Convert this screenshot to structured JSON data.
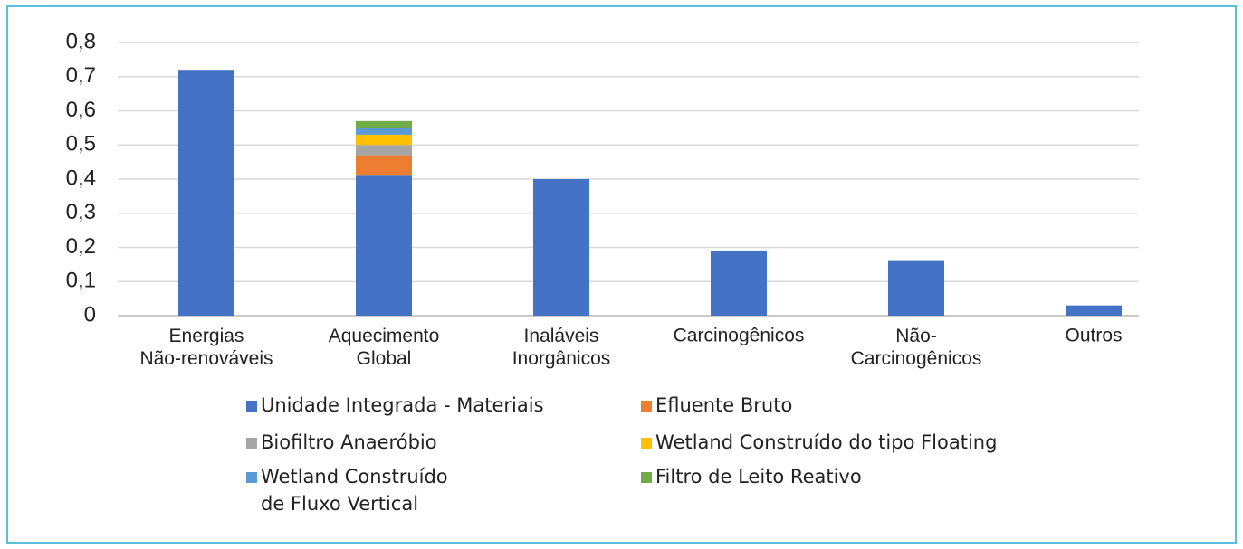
{
  "chart_data": {
    "type": "stacked_bar",
    "categories": [
      "Energias\nNão-renováveis",
      "Aquecimento\nGlobal",
      "Inaláveis\nInorgânicos",
      "Carcinogênicos",
      "Não-\nCarcinogênicos",
      "Outros"
    ],
    "series": [
      {
        "name": "Unidade Integrada - Materiais",
        "color": "#4472c4",
        "values": [
          0.72,
          0.41,
          0.4,
          0.19,
          0.16,
          0.03
        ]
      },
      {
        "name": "Efluente Bruto",
        "color": "#ed7d31",
        "values": [
          0,
          0.06,
          0,
          0,
          0,
          0
        ]
      },
      {
        "name": "Biofiltro Anaeróbio",
        "color": "#a5a5a5",
        "values": [
          0,
          0.03,
          0,
          0,
          0,
          0
        ]
      },
      {
        "name": "Wetland Construído do tipo Floating",
        "color": "#ffc000",
        "values": [
          0,
          0.03,
          0,
          0,
          0,
          0
        ]
      },
      {
        "name": "Wetland Construído\nde Fluxo Vertical",
        "color": "#5b9bd5",
        "values": [
          0,
          0.02,
          0,
          0,
          0,
          0
        ]
      },
      {
        "name": "Filtro de Leito Reativo",
        "color": "#70ad47",
        "values": [
          0,
          0.02,
          0,
          0,
          0,
          0
        ]
      }
    ],
    "ylim": [
      0,
      0.8
    ],
    "yticks": [
      0,
      {
        "value": 0.1,
        "label": "0,1"
      },
      {
        "value": 0.2,
        "label": "0,2"
      },
      {
        "value": 0.3,
        "label": "0,3"
      },
      {
        "value": 0.4,
        "label": "0,4"
      },
      {
        "value": 0.5,
        "label": "0,5"
      },
      {
        "value": 0.6,
        "label": "0,6"
      },
      {
        "value": 0.7,
        "label": "0,7"
      },
      {
        "value": 0.8,
        "label": "0,8"
      }
    ],
    "grid": true
  }
}
